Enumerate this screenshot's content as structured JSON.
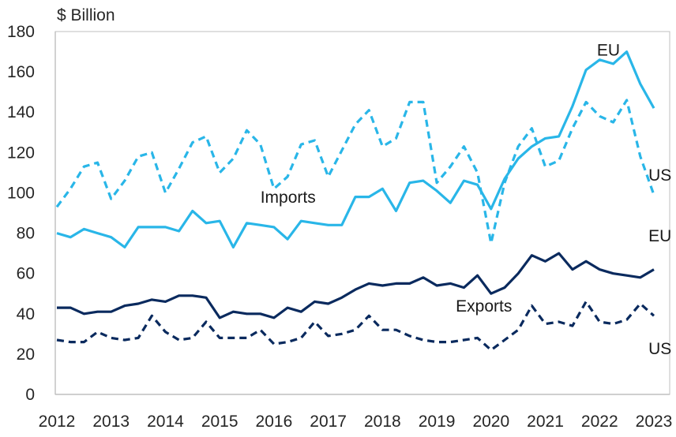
{
  "chart_data": {
    "type": "line",
    "title": "",
    "ylabel": "$ Billion",
    "xlabel": "",
    "ylim": [
      0,
      180
    ],
    "yticks": [
      0,
      20,
      40,
      60,
      80,
      100,
      120,
      140,
      160,
      180
    ],
    "xlim": [
      2012,
      2023
    ],
    "xticks": [
      "2012",
      "2013",
      "2014",
      "2015",
      "2016",
      "2017",
      "2018",
      "2019",
      "2020",
      "2021",
      "2022",
      "2023"
    ],
    "grid": false,
    "colors": {
      "light": "#29b6e8",
      "dark": "#0a2a5e",
      "axis": "#7f7f7f"
    },
    "series": [
      {
        "name": "EU Imports",
        "color_key": "light",
        "dash": false,
        "x": [
          2012.0,
          2012.25,
          2012.5,
          2012.75,
          2013.0,
          2013.25,
          2013.5,
          2013.75,
          2014.0,
          2014.25,
          2014.5,
          2014.75,
          2015.0,
          2015.25,
          2015.5,
          2015.75,
          2016.0,
          2016.25,
          2016.5,
          2016.75,
          2017.0,
          2017.25,
          2017.5,
          2017.75,
          2018.0,
          2018.25,
          2018.5,
          2018.75,
          2019.0,
          2019.25,
          2019.5,
          2019.75,
          2020.0,
          2020.25,
          2020.5,
          2020.75,
          2021.0,
          2021.25,
          2021.5,
          2021.75,
          2022.0,
          2022.25,
          2022.5,
          2022.75,
          2023.0
        ],
        "values": [
          80,
          78,
          82,
          80,
          78,
          73,
          83,
          83,
          83,
          81,
          91,
          85,
          86,
          73,
          85,
          84,
          83,
          77,
          86,
          85,
          84,
          84,
          98,
          98,
          102,
          91,
          105,
          106,
          101,
          95,
          106,
          104,
          92,
          107,
          117,
          123,
          127,
          128,
          143,
          161,
          166,
          164,
          170,
          154,
          142
        ]
      },
      {
        "name": "US Imports",
        "color_key": "light",
        "dash": true,
        "x": [
          2012.0,
          2012.25,
          2012.5,
          2012.75,
          2013.0,
          2013.25,
          2013.5,
          2013.75,
          2014.0,
          2014.25,
          2014.5,
          2014.75,
          2015.0,
          2015.25,
          2015.5,
          2015.75,
          2016.0,
          2016.25,
          2016.5,
          2016.75,
          2017.0,
          2017.25,
          2017.5,
          2017.75,
          2018.0,
          2018.25,
          2018.5,
          2018.75,
          2019.0,
          2019.25,
          2019.5,
          2019.75,
          2020.0,
          2020.25,
          2020.5,
          2020.75,
          2021.0,
          2021.25,
          2021.5,
          2021.75,
          2022.0,
          2022.25,
          2022.5,
          2022.75,
          2023.0
        ],
        "values": [
          93,
          102,
          113,
          115,
          97,
          106,
          118,
          120,
          100,
          112,
          125,
          128,
          110,
          117,
          131,
          124,
          102,
          108,
          124,
          126,
          108,
          121,
          134,
          141,
          123,
          127,
          145,
          145,
          105,
          113,
          123,
          110,
          75,
          105,
          123,
          132,
          113,
          116,
          132,
          145,
          138,
          135,
          146,
          118,
          99
        ]
      },
      {
        "name": "EU Exports",
        "color_key": "dark",
        "dash": false,
        "x": [
          2012.0,
          2012.25,
          2012.5,
          2012.75,
          2013.0,
          2013.25,
          2013.5,
          2013.75,
          2014.0,
          2014.25,
          2014.5,
          2014.75,
          2015.0,
          2015.25,
          2015.5,
          2015.75,
          2016.0,
          2016.25,
          2016.5,
          2016.75,
          2017.0,
          2017.25,
          2017.5,
          2017.75,
          2018.0,
          2018.25,
          2018.5,
          2018.75,
          2019.0,
          2019.25,
          2019.5,
          2019.75,
          2020.0,
          2020.25,
          2020.5,
          2020.75,
          2021.0,
          2021.25,
          2021.5,
          2021.75,
          2022.0,
          2022.25,
          2022.5,
          2022.75,
          2023.0
        ],
        "values": [
          43,
          43,
          40,
          41,
          41,
          44,
          45,
          47,
          46,
          49,
          49,
          48,
          38,
          41,
          40,
          40,
          38,
          43,
          41,
          46,
          45,
          48,
          52,
          55,
          54,
          55,
          55,
          58,
          54,
          55,
          53,
          59,
          50,
          53,
          60,
          69,
          66,
          70,
          62,
          66,
          62,
          60,
          59,
          58,
          62
        ]
      },
      {
        "name": "US Exports",
        "color_key": "dark",
        "dash": true,
        "x": [
          2012.0,
          2012.25,
          2012.5,
          2012.75,
          2013.0,
          2013.25,
          2013.5,
          2013.75,
          2014.0,
          2014.25,
          2014.5,
          2014.75,
          2015.0,
          2015.25,
          2015.5,
          2015.75,
          2016.0,
          2016.25,
          2016.5,
          2016.75,
          2017.0,
          2017.25,
          2017.5,
          2017.75,
          2018.0,
          2018.25,
          2018.5,
          2018.75,
          2019.0,
          2019.25,
          2019.5,
          2019.75,
          2020.0,
          2020.25,
          2020.5,
          2020.75,
          2021.0,
          2021.25,
          2021.5,
          2021.75,
          2022.0,
          2022.25,
          2022.5,
          2022.75,
          2023.0
        ],
        "values": [
          27,
          26,
          26,
          31,
          28,
          27,
          28,
          39,
          31,
          27,
          28,
          36,
          28,
          28,
          28,
          32,
          25,
          26,
          28,
          36,
          29,
          30,
          32,
          39,
          32,
          32,
          29,
          27,
          26,
          26,
          27,
          28,
          22,
          27,
          32,
          44,
          35,
          36,
          34,
          46,
          36,
          35,
          37,
          45,
          39
        ]
      }
    ],
    "annotations": [
      {
        "text": "EU",
        "x": 2021.95,
        "y": 168
      },
      {
        "text": "US",
        "x": 2022.9,
        "y": 106
      },
      {
        "text": "Imports",
        "x": 2015.75,
        "y": 95
      },
      {
        "text": "EU",
        "x": 2022.9,
        "y": 76
      },
      {
        "text": "Exports",
        "x": 2019.35,
        "y": 41
      },
      {
        "text": "US",
        "x": 2022.9,
        "y": 20
      }
    ]
  }
}
